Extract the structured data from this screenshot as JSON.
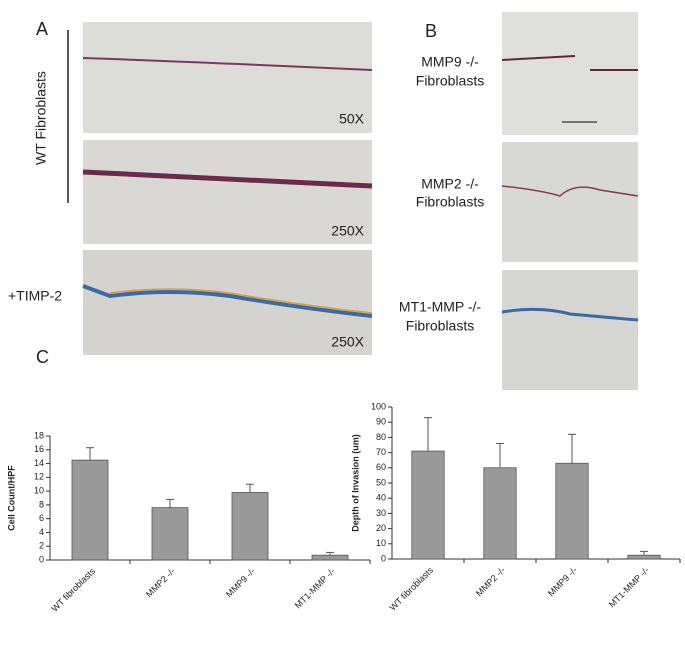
{
  "panel_a": {
    "label": "A",
    "side_label": "WT Fibroblasts",
    "magnifications": [
      "50X",
      "250X",
      "250X"
    ],
    "treatment": "+TIMP-2"
  },
  "panel_b": {
    "label": "B",
    "rows": [
      [
        "MMP9 -/-",
        "Fibroblasts"
      ],
      [
        "MMP2 -/-",
        "Fibroblasts"
      ],
      [
        "MT1-MMP -/-",
        "Fibroblasts"
      ]
    ]
  },
  "panel_c": {
    "label": "C"
  },
  "chart_data": [
    {
      "type": "bar",
      "y_label": "Cell Count/HPF",
      "categories": [
        "WT fibroblasts",
        "MMP2 -/-",
        "MMP9 -/-",
        "MT1-MMP -/-"
      ],
      "values": [
        14.5,
        7.6,
        9.8,
        0.7
      ],
      "errors": [
        1.8,
        1.2,
        1.2,
        0.4
      ],
      "color": "#999999",
      "ylim": [
        0,
        18
      ],
      "yticks": [
        0,
        2,
        4,
        6,
        8,
        10,
        12,
        14,
        16,
        18
      ]
    },
    {
      "type": "bar",
      "y_label": "Depth of Invasion (um)",
      "categories": [
        "WT fibroblasts",
        "MMP2 -/-",
        "MMP9 -/-",
        "MT1-MMP -/-"
      ],
      "values": [
        71,
        60,
        63,
        2.5
      ],
      "errors": [
        22,
        16,
        19,
        2.5
      ],
      "color": "#999999",
      "ylim": [
        0,
        100
      ],
      "yticks": [
        0,
        10,
        20,
        30,
        40,
        50,
        60,
        70,
        80,
        90,
        100
      ]
    }
  ]
}
